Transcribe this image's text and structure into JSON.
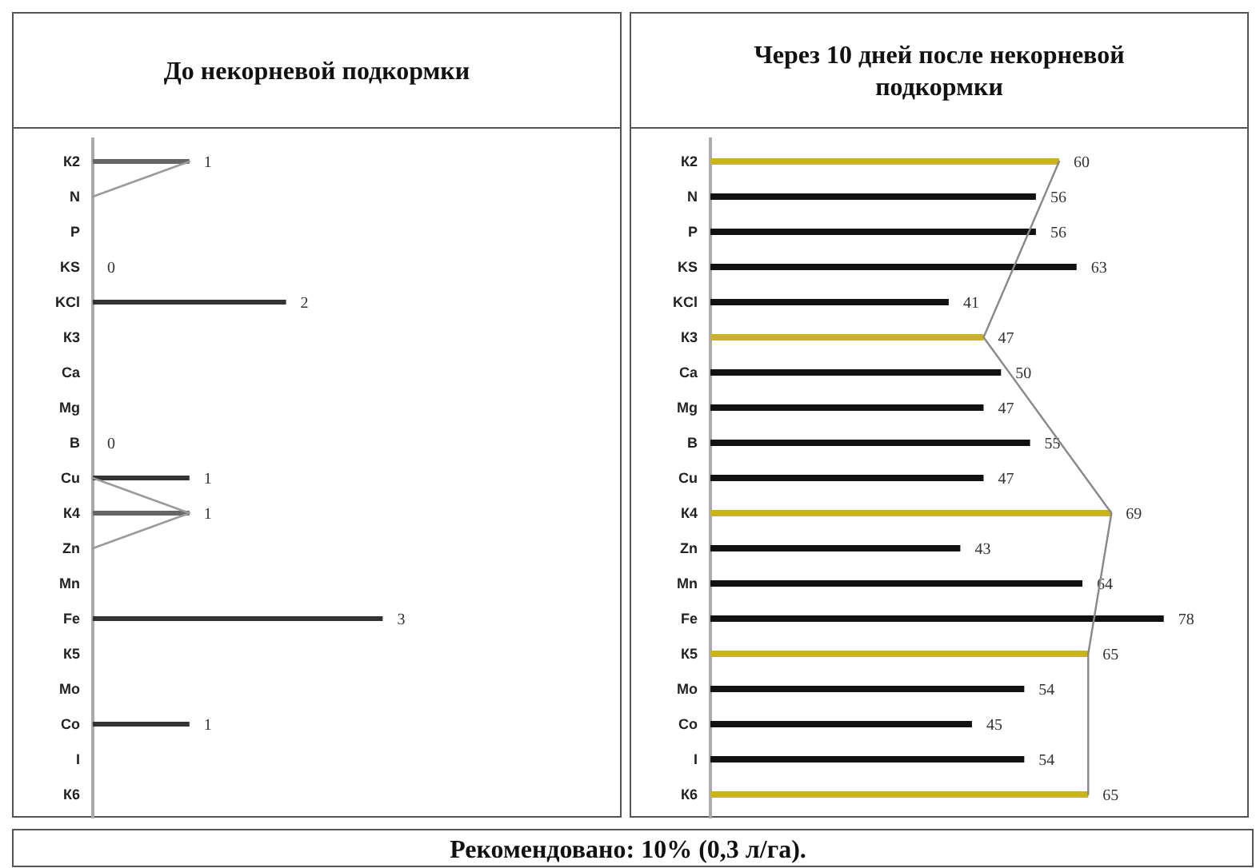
{
  "chart_data": [
    {
      "type": "bar",
      "orientation": "horizontal",
      "title": "До некорневой подкормки",
      "categories": [
        "К2",
        "N",
        "P",
        "KS",
        "KCl",
        "К3",
        "Ca",
        "Mg",
        "B",
        "Cu",
        "К4",
        "Zn",
        "Mn",
        "Fe",
        "К5",
        "Mo",
        "Co",
        "I",
        "К6"
      ],
      "series": [
        {
          "values": [
            1,
            null,
            null,
            0,
            2,
            null,
            null,
            null,
            0,
            1,
            1,
            null,
            null,
            3,
            null,
            null,
            1,
            null,
            null
          ],
          "value_labels": [
            "1",
            null,
            null,
            "0",
            "2",
            null,
            null,
            null,
            "0",
            "1",
            "1",
            null,
            null,
            "3",
            null,
            null,
            "1",
            null,
            null
          ],
          "colors": [
            "#666666",
            null,
            null,
            "#333333",
            "#333333",
            null,
            null,
            null,
            "#333333",
            "#333333",
            "#666666",
            null,
            null,
            "#333333",
            null,
            null,
            "#333333",
            null,
            null
          ]
        },
        {
          "type": "line",
          "color": "#9a9a9a",
          "x": [
            "К2",
            "N",
            "Ca",
            "Cu",
            "К4",
            "Zn"
          ],
          "values": [
            1,
            0,
            null,
            0,
            1,
            0
          ]
        }
      ]
    },
    {
      "type": "bar",
      "orientation": "horizontal",
      "title": "Через 10 дней после некорневой подкормки",
      "categories": [
        "К2",
        "N",
        "P",
        "KS",
        "KCl",
        "К3",
        "Ca",
        "Mg",
        "B",
        "Cu",
        "К4",
        "Zn",
        "Mn",
        "Fe",
        "К5",
        "Mo",
        "Co",
        "I",
        "К6"
      ],
      "annotations": [
        "Рекомендовано: 10% (0,3 л/га)."
      ],
      "series": [
        {
          "values": [
            60,
            56,
            56,
            63,
            41,
            47,
            50,
            47,
            55,
            47,
            69,
            43,
            64,
            78,
            65,
            54,
            45,
            54,
            65
          ],
          "value_labels": [
            "60",
            "56",
            "56",
            "63",
            "41",
            "47",
            "50",
            "47",
            "55",
            "47",
            "69",
            "43",
            "64",
            "78",
            "65",
            "54",
            "45",
            "54",
            "65"
          ],
          "colors": [
            "#c8b22a",
            "#111111",
            "#111111",
            "#111111",
            "#111111",
            "#c8b22a",
            "#111111",
            "#111111",
            "#111111",
            "#111111",
            "#c8b22a",
            "#111111",
            "#111111",
            "#111111",
            "#c8b22a",
            "#111111",
            "#111111",
            "#111111",
            "#c8b22a"
          ]
        },
        {
          "type": "line",
          "color": "#888888",
          "x": [
            "К2",
            "К3",
            "К4",
            "К5",
            "К6"
          ],
          "values": [
            60,
            47,
            69,
            65,
            65
          ]
        }
      ]
    }
  ]
}
